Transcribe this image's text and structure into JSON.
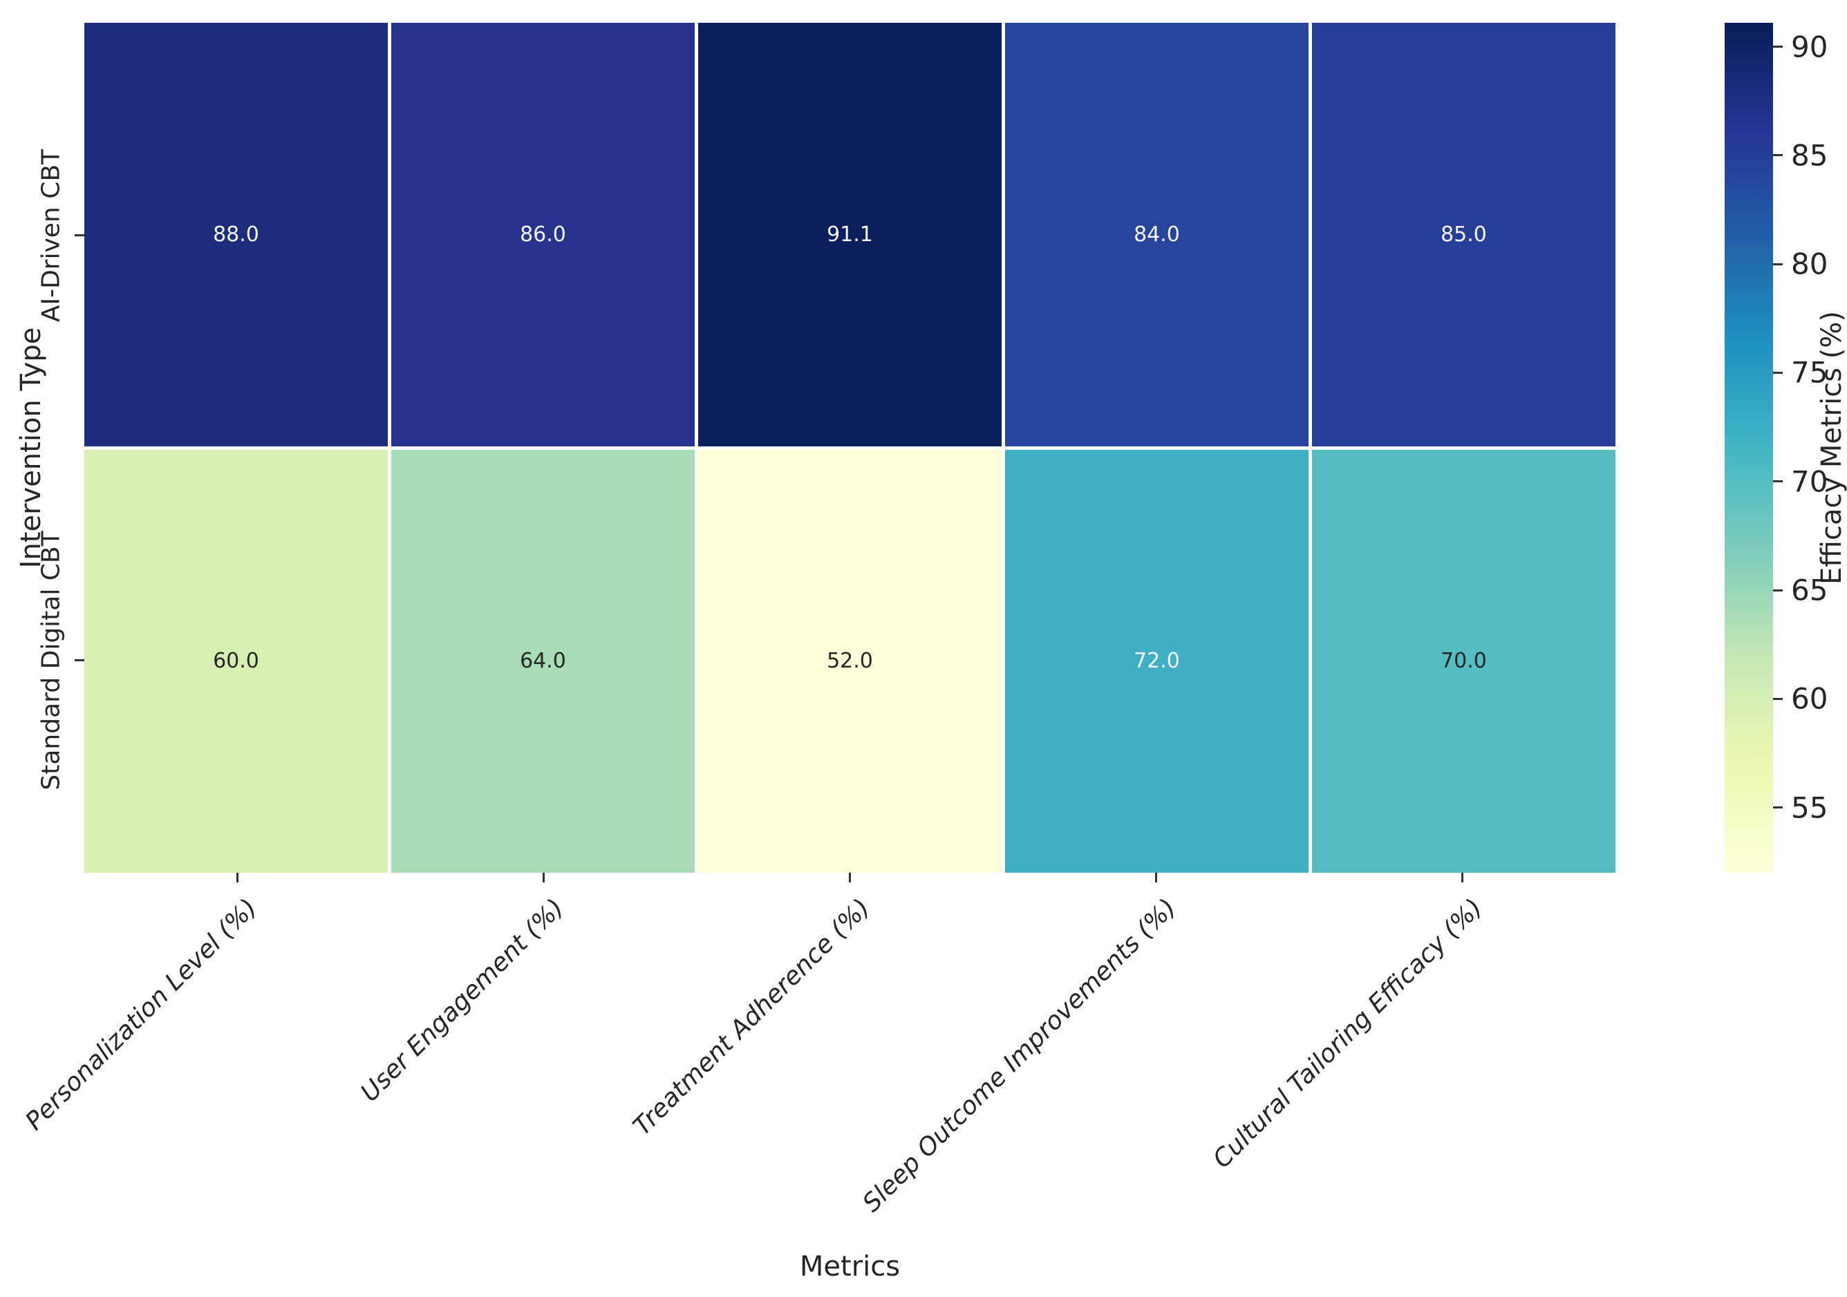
{
  "chart_data": {
    "type": "heatmap",
    "xlabel": "Metrics",
    "ylabel": "Intervention Type",
    "columns": [
      "Personalization Level (%)",
      "User Engagement (%)",
      "Treatment Adherence (%)",
      "Sleep Outcome Improvements (%)",
      "Cultural Tailoring Efficacy (%)"
    ],
    "rows": [
      "AI-Driven CBT",
      "Standard Digital CBT"
    ],
    "values": [
      [
        88.0,
        86.0,
        91.1,
        84.0,
        85.0
      ],
      [
        60.0,
        64.0,
        52.0,
        72.0,
        70.0
      ]
    ],
    "cell_labels": [
      [
        "88.0",
        "86.0",
        "91.1",
        "84.0",
        "85.0"
      ],
      [
        "60.0",
        "64.0",
        "52.0",
        "72.0",
        "70.0"
      ]
    ],
    "cell_colors": [
      [
        "#1e2c7d",
        "#283390",
        "#0a1f5c",
        "#27459c",
        "#263e97"
      ],
      [
        "#d8efb2",
        "#a6dcb6",
        "#feffd9",
        "#3fb0c4",
        "#55bcc2"
      ]
    ],
    "cell_text_colors": [
      [
        "#f5f5f5",
        "#f5f5f5",
        "#f5f5f5",
        "#f5f5f5",
        "#f5f5f5"
      ],
      [
        "#262626",
        "#262626",
        "#262626",
        "#f5f5f5",
        "#262626"
      ]
    ],
    "grid_line_color": "#ffffff",
    "colorbar": {
      "label": "Efficacy Metrics (%)",
      "vmin": 52.0,
      "vmax": 91.1,
      "ticks": [
        90,
        85,
        80,
        75,
        70,
        65,
        60,
        55
      ],
      "colormap": "YlGnBu",
      "gradient_stops_bottom_to_top": [
        "#ffffd9",
        "#edf8b1",
        "#c7e9b4",
        "#7fcdbb",
        "#41b6c4",
        "#1d91c0",
        "#225ea8",
        "#253494",
        "#081d58"
      ]
    },
    "legend_position": "right",
    "grid": false
  }
}
